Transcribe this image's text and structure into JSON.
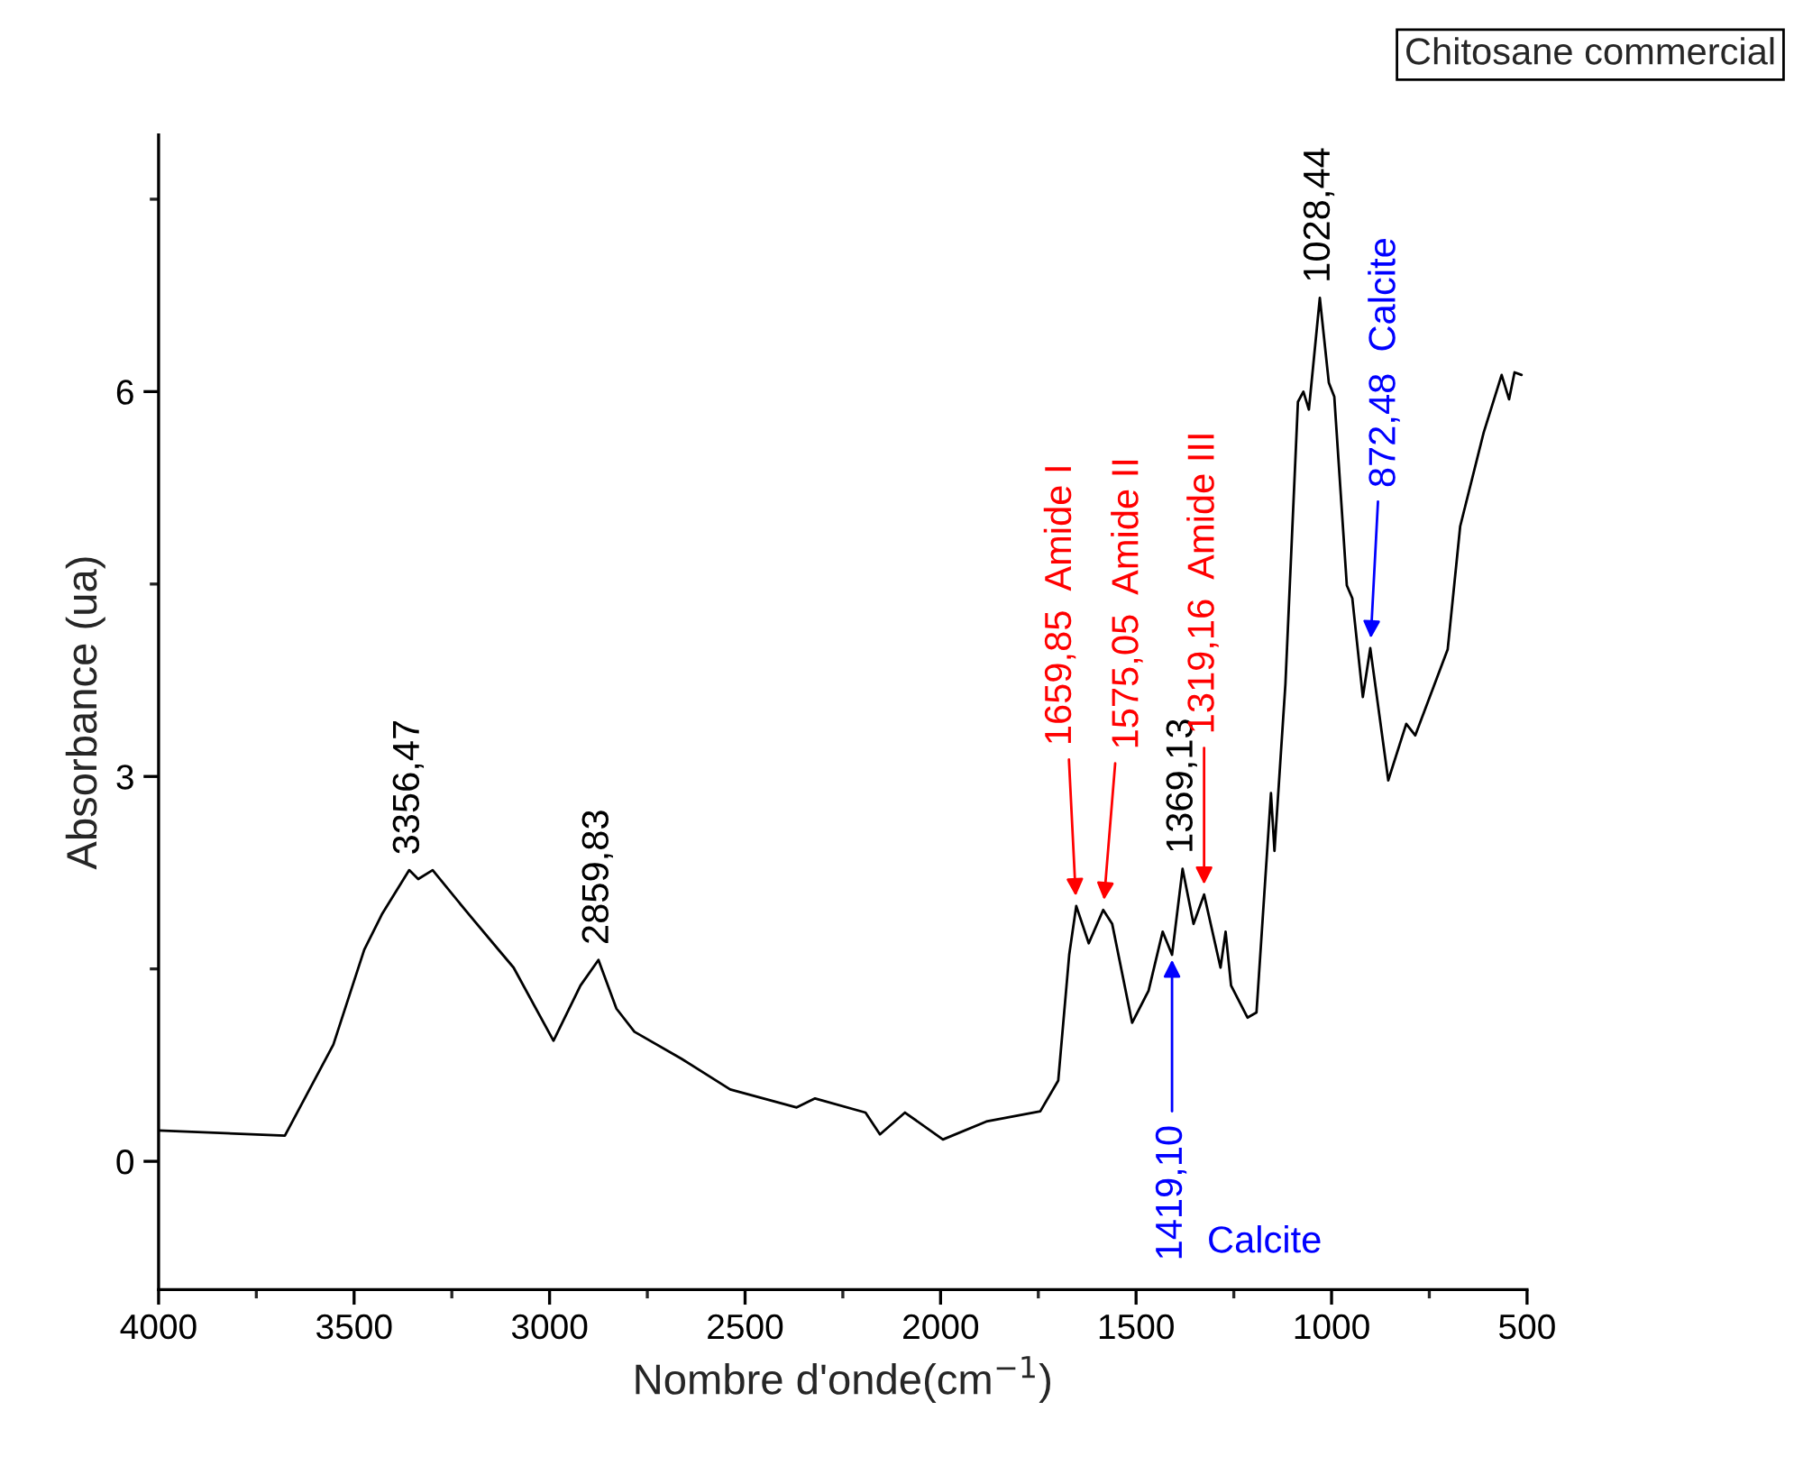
{
  "chart_data": {
    "type": "line",
    "title": "Chitosane commercial",
    "xlabel": "Nombre d'onde(cm$^{−1}$)",
    "ylabel": "Absorbance (ua)",
    "xlim": [
      4000,
      500
    ],
    "xticks": [
      4000,
      3500,
      3000,
      2500,
      2000,
      1500,
      1000,
      500
    ],
    "ylim": [
      -1,
      8
    ],
    "yticks": [
      0,
      3,
      6
    ],
    "grid": false,
    "marker": "none",
    "line_style": "solid",
    "series": [
      {
        "color": "#000000",
        "x": [
          4000,
          3677,
          3553,
          3474,
          3428,
          3359,
          3336,
          3299,
          3216,
          3128,
          3092,
          2990,
          2921,
          2875,
          2829,
          2783,
          2663,
          2538,
          2368,
          2321,
          2192,
          2155,
          2091,
          1994,
          1883,
          1745,
          1699,
          1671,
          1653,
          1621,
          1584,
          1561,
          1510,
          1468,
          1432,
          1408,
          1381,
          1353,
          1326,
          1284,
          1271,
          1257,
          1215,
          1192,
          1155,
          1146,
          1118,
          1086,
          1072,
          1058,
          1030,
          1007,
          993,
          961,
          947,
          920,
          901,
          855,
          809,
          786,
          703,
          671,
          611,
          565,
          546,
          532,
          514
        ],
        "values": [
          0.24,
          0.2,
          0.91,
          1.65,
          1.93,
          2.27,
          2.2,
          2.27,
          1.96,
          1.64,
          1.51,
          0.94,
          1.37,
          1.57,
          1.19,
          1.01,
          0.8,
          0.56,
          0.42,
          0.49,
          0.38,
          0.21,
          0.38,
          0.17,
          0.31,
          0.39,
          0.63,
          1.61,
          1.99,
          1.7,
          1.96,
          1.85,
          1.08,
          1.33,
          1.79,
          1.61,
          2.28,
          1.85,
          2.08,
          1.51,
          1.79,
          1.37,
          1.12,
          1.16,
          2.87,
          2.42,
          3.72,
          5.92,
          6.0,
          5.86,
          6.73,
          6.07,
          5.96,
          4.49,
          4.39,
          3.62,
          4.0,
          2.97,
          3.41,
          3.32,
          3.99,
          4.95,
          5.68,
          6.13,
          5.94,
          6.15,
          6.13
        ]
      }
    ],
    "annotations": [
      {
        "text": "3356,47",
        "x": 3359,
        "y": 2.27
      },
      {
        "text": "2859,83",
        "x": 2875,
        "y": 1.57
      },
      {
        "text": "1659,85  Amide I",
        "x": 1653,
        "y": 1.99
      },
      {
        "text": "1575,05  Amide II",
        "x": 1584,
        "y": 1.96
      },
      {
        "text": "1369,13",
        "x": 1381,
        "y": 2.28
      },
      {
        "text": "1319,16  Amide III",
        "x": 1326,
        "y": 2.08
      },
      {
        "text": "1419,10",
        "x": 1408,
        "y": 1.61
      },
      "Calcite",
      {
        "text": "1028,44",
        "x": 1030,
        "y": 6.73
      },
      {
        "text": "872,48  Calcite",
        "x": 901,
        "y": 4.0
      }
    ]
  }
}
